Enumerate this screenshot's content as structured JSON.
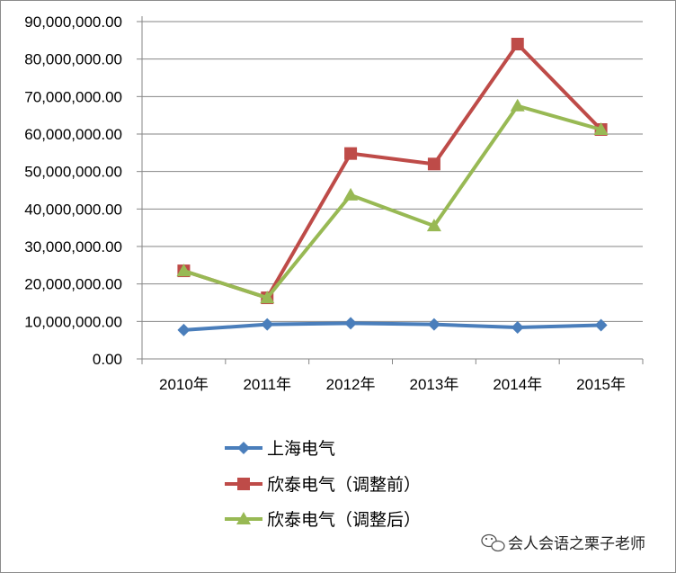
{
  "chart_data": {
    "type": "line",
    "title": "",
    "xlabel": "",
    "ylabel": "",
    "categories": [
      "2010年",
      "2011年",
      "2012年",
      "2013年",
      "2014年",
      "2015年"
    ],
    "ylim": [
      0,
      90000000
    ],
    "ytick_step": 10000000,
    "yticks": [
      "0.00",
      "10,000,000.00",
      "20,000,000.00",
      "30,000,000.00",
      "40,000,000.00",
      "50,000,000.00",
      "60,000,000.00",
      "70,000,000.00",
      "80,000,000.00",
      "90,000,000.00"
    ],
    "grid": true,
    "legend_position": "bottom-left",
    "series": [
      {
        "name": "上海电气",
        "color": "#4a7ebb",
        "marker": "diamond",
        "values": [
          7700000,
          9200000,
          9500000,
          9200000,
          8400000,
          9000000
        ]
      },
      {
        "name": "欣泰电气（调整前）",
        "color": "#be4b48",
        "marker": "square",
        "values": [
          23500000,
          16300000,
          54800000,
          52000000,
          84000000,
          61200000
        ]
      },
      {
        "name": "欣泰电气（调整后）",
        "color": "#98b954",
        "marker": "triangle",
        "values": [
          23500000,
          16300000,
          43700000,
          35500000,
          67500000,
          61200000
        ]
      }
    ]
  },
  "watermark": {
    "text": "会人会语之栗子老师",
    "icon": "wechat-icon"
  }
}
